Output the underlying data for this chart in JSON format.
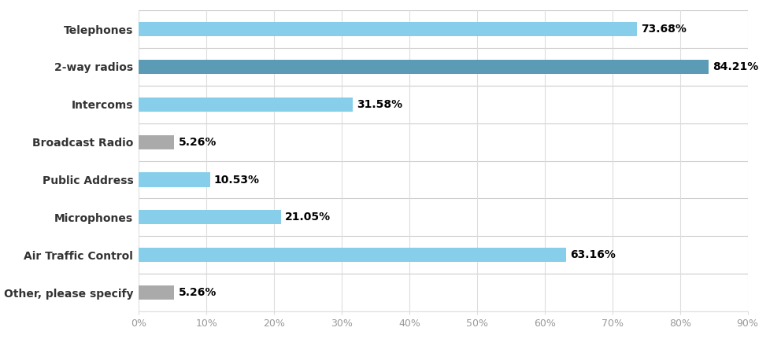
{
  "categories": [
    "Telephones",
    "2-way radios",
    "Intercoms",
    "Broadcast Radio",
    "Public Address",
    "Microphones",
    "Air Traffic Control",
    "Other, please specify"
  ],
  "values": [
    73.68,
    84.21,
    31.58,
    5.26,
    10.53,
    21.05,
    63.16,
    5.26
  ],
  "bar_colors": [
    "#87CEEB",
    "#5B9BB5",
    "#87CEEB",
    "#AAAAAA",
    "#87CEEB",
    "#87CEEB",
    "#87CEEB",
    "#AAAAAA"
  ],
  "label_texts": [
    "73.68%",
    "84.21%",
    "31.58%",
    "5.26%",
    "10.53%",
    "21.05%",
    "63.16%",
    "5.26%"
  ],
  "xlim": [
    0,
    90
  ],
  "xtick_values": [
    0,
    10,
    20,
    30,
    40,
    50,
    60,
    70,
    80,
    90
  ],
  "xtick_labels": [
    "0%",
    "10%",
    "20%",
    "30%",
    "40%",
    "50%",
    "60%",
    "70%",
    "80%",
    "90%"
  ],
  "background_color": "#ffffff",
  "grid_color": "#dddddd",
  "separator_color": "#cccccc",
  "bar_height": 0.38,
  "label_fontsize": 10,
  "tick_fontsize": 9,
  "category_fontsize": 10,
  "label_color": "#333333"
}
